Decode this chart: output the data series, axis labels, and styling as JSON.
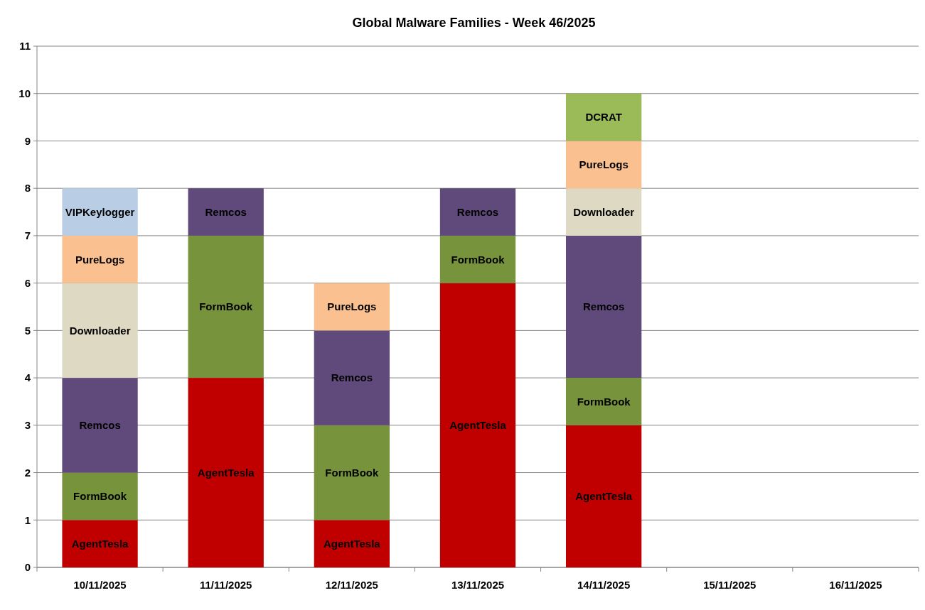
{
  "chart_data": {
    "type": "bar",
    "stacked": true,
    "title": "Global Malware Families - Week 46/2025",
    "categories": [
      "10/11/2025",
      "11/11/2025",
      "12/11/2025",
      "13/11/2025",
      "14/11/2025",
      "15/11/2025",
      "16/11/2025"
    ],
    "series": [
      {
        "name": "AgentTesla",
        "color": "#c00000",
        "values": [
          1,
          4,
          1,
          6,
          3,
          null,
          null
        ]
      },
      {
        "name": "FormBook",
        "color": "#77933c",
        "values": [
          1,
          3,
          2,
          1,
          1,
          null,
          null
        ]
      },
      {
        "name": "Remcos",
        "color": "#604a7b",
        "values": [
          2,
          1,
          2,
          1,
          3,
          null,
          null
        ]
      },
      {
        "name": "Downloader",
        "color": "#ddd9c3",
        "values": [
          2,
          null,
          null,
          null,
          1,
          null,
          null
        ]
      },
      {
        "name": "PureLogs",
        "color": "#fac090",
        "values": [
          1,
          null,
          1,
          null,
          1,
          null,
          null
        ]
      },
      {
        "name": "VIPKeylogger",
        "color": "#b9cde5",
        "values": [
          1,
          null,
          null,
          null,
          null,
          null,
          null
        ]
      },
      {
        "name": "DCRAT",
        "color": "#9bbb59",
        "values": [
          null,
          null,
          null,
          null,
          1,
          null,
          null
        ]
      }
    ],
    "ylim": [
      0,
      11
    ],
    "yticks": [
      0,
      1,
      2,
      3,
      4,
      5,
      6,
      7,
      8,
      9,
      10,
      11
    ],
    "grid": "y"
  }
}
